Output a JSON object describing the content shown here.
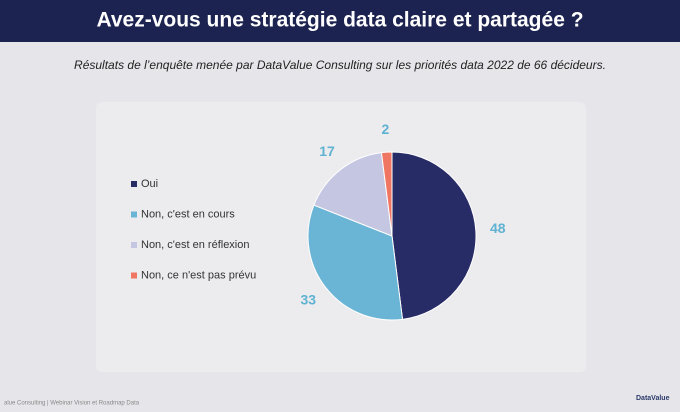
{
  "chart_data": {
    "type": "pie",
    "title": "Avez-vous une stratégie data claire et partagée ?",
    "subtitle": "Résultats de l’enquête menée par DataValue Consulting sur les priorités data 2022 de 66 décideurs.",
    "categories": [
      "Oui",
      "Non, c'est en cours",
      "Non, c'est en réflexion",
      "Non, ce n'est pas prévu"
    ],
    "values": [
      48,
      33,
      17,
      2
    ],
    "colors": [
      "#272c66",
      "#6ab4d5",
      "#c5c7e2",
      "#ef7663"
    ],
    "label_color": "#5fb2d1",
    "legend": "left"
  },
  "footer": {
    "text": "alue Consulting | Webinar Vision et Roadmap Data",
    "logo": "DataValue"
  }
}
